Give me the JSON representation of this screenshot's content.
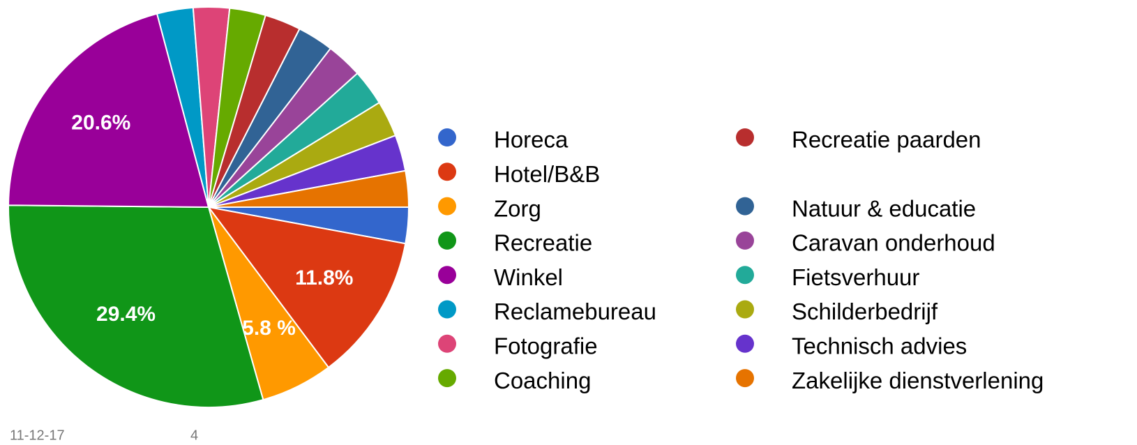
{
  "chart_data": {
    "type": "pie",
    "categories": [
      "Horeca",
      "Hotel/B&B",
      "Zorg",
      "Recreatie",
      "Winkel",
      "Reclamebureau",
      "Fotografie",
      "Coaching",
      "Recreatie paarden",
      "Natuur & educatie",
      "Caravan onderhoud",
      "Fietsverhuur",
      "Schilderbedrijf",
      "Technisch advies",
      "Zakelijke dienstverlening"
    ],
    "values": [
      2.9,
      11.8,
      5.8,
      29.4,
      20.6,
      2.9,
      2.9,
      2.9,
      2.9,
      2.9,
      2.9,
      2.9,
      2.9,
      2.9,
      2.9
    ],
    "value_labels": [
      null,
      "11.8%",
      "5.8 %",
      "29.4%",
      "20.6%",
      null,
      null,
      null,
      null,
      null,
      null,
      null,
      null,
      null,
      null
    ],
    "colors": [
      "#3366cc",
      "#dc3912",
      "#ff9900",
      "#109618",
      "#990099",
      "#0099c6",
      "#dd4477",
      "#66aa00",
      "#b82e2e",
      "#316395",
      "#994499",
      "#22aa99",
      "#aaaa11",
      "#6633cc",
      "#e67300"
    ],
    "legend": "right"
  },
  "footer": {
    "date": "11-12-17",
    "page": "4"
  }
}
